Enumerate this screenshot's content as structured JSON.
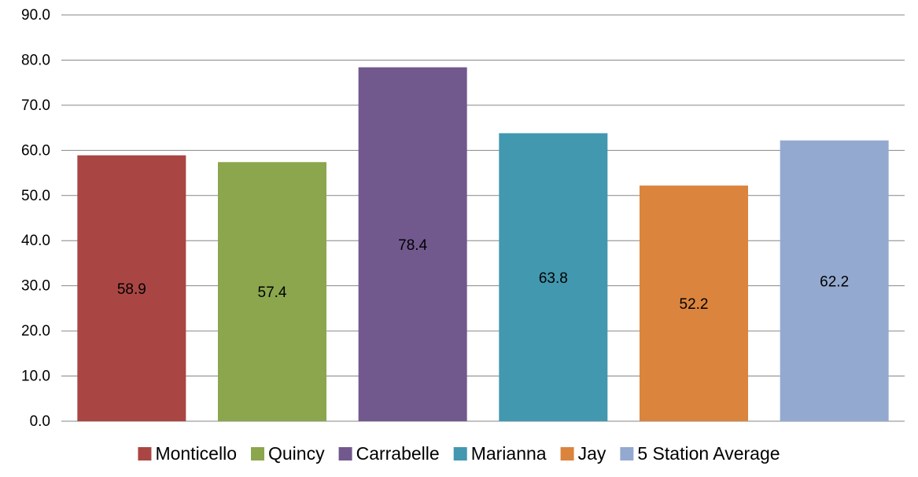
{
  "chart_data": {
    "type": "bar",
    "title": "",
    "xlabel": "",
    "ylabel": "",
    "ylim": [
      0,
      90
    ],
    "y_ticks": [
      "0.0",
      "10.0",
      "20.0",
      "30.0",
      "40.0",
      "50.0",
      "60.0",
      "70.0",
      "80.0",
      "90.0"
    ],
    "grid": true,
    "legend_position": "bottom",
    "series": [
      {
        "name": "Monticello",
        "value": 58.9,
        "label": "58.9",
        "color": "#A94643"
      },
      {
        "name": "Quincy",
        "value": 57.4,
        "label": "57.4",
        "color": "#8BA64D"
      },
      {
        "name": "Carrabelle",
        "value": 78.4,
        "label": "78.4",
        "color": "#71598E"
      },
      {
        "name": "Marianna",
        "value": 63.8,
        "label": "63.8",
        "color": "#4298AF"
      },
      {
        "name": "Jay",
        "value": 52.2,
        "label": "52.2",
        "color": "#DB843D"
      },
      {
        "name": "5 Station Average",
        "value": 62.2,
        "label": "62.2",
        "color": "#93A9D0"
      }
    ]
  },
  "colors": {
    "gridline": "#868686",
    "text": "#000000"
  }
}
